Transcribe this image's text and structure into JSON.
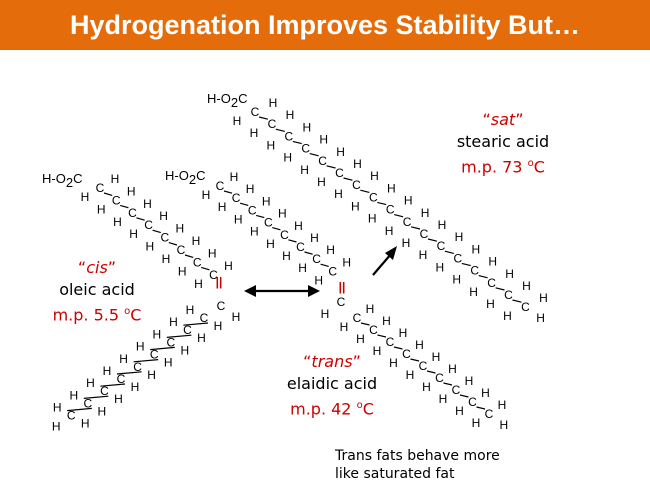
{
  "title": "Hydrogenation Improves Stability But…",
  "molecules": [
    {
      "key": "stearic",
      "label_open": "“",
      "label": "sat",
      "label_close": "”",
      "name": "stearic acid",
      "mp_prefix": "m.p. 73 ",
      "mp_sup": "o",
      "mp_unit": "C"
    },
    {
      "key": "oleic",
      "label_open": "“",
      "label": "cis",
      "label_close": "”",
      "name": "oleic acid",
      "mp_prefix": "m.p. 5.5 ",
      "mp_sup": "o",
      "mp_unit": "C"
    },
    {
      "key": "elaidic",
      "label_open": "“",
      "label": "trans",
      "label_close": "”",
      "name": "elaidic acid",
      "mp_prefix": "m.p. 42 ",
      "mp_sup": "o",
      "mp_unit": "C"
    }
  ],
  "structure_text": {
    "acid_group_a": "H-O",
    "acid_group_sub": "2",
    "acid_group_c": "C",
    "carbon": "C",
    "hydrogen": "H",
    "double_bond": "||"
  },
  "note_lines": [
    "Trans fats behave more",
    "like saturated fat"
  ]
}
